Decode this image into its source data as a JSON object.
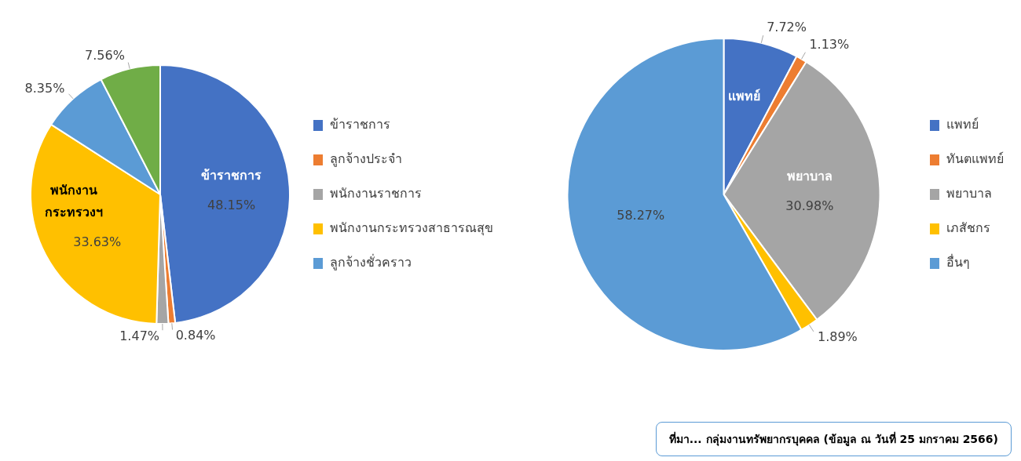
{
  "chart_data": [
    {
      "type": "pie",
      "categories": [
        "ข้าราชการ",
        "ลูกจ้างประจำ",
        "พนักงานราชการ",
        "พนักงานกระทรวงสาธารณสุข",
        "ลูกจ้างชั่วคราว",
        null
      ],
      "values": [
        48.15,
        0.84,
        1.47,
        33.63,
        8.35,
        7.56
      ],
      "colors": [
        "#4472c4",
        "#ed7d31",
        "#a5a5a5",
        "#ffc000",
        "#5b9bd5",
        "#70ad47"
      ],
      "value_labels": [
        "48.15%",
        "0.84%",
        "1.47%",
        "33.63%",
        "8.35%",
        "7.56%"
      ],
      "legend": "right",
      "annotations": [
        {
          "text": "ข้าราชการ",
          "x": "ข้าราชการ"
        },
        {
          "text": "พนักงาน กระทรวงฯ",
          "x": "พนักงานกระทรวงสาธารณสุข"
        }
      ]
    },
    {
      "type": "pie",
      "categories": [
        "แพทย์",
        "ทันตแพทย์",
        "พยาบาล",
        "เภสัชกร",
        "อื่นๆ"
      ],
      "values": [
        7.72,
        1.13,
        30.98,
        1.89,
        58.27
      ],
      "colors": [
        "#4472c4",
        "#ed7d31",
        "#a5a5a5",
        "#ffc000",
        "#5b9bd5"
      ],
      "value_labels": [
        "7.72%",
        "1.13%",
        "30.98%",
        "1.89%",
        "58.27%"
      ],
      "legend": "right",
      "annotations": [
        {
          "text": "แพทย์",
          "x": "แพทย์"
        },
        {
          "text": "พยาบาล",
          "x": "พยาบาล"
        },
        "ที่มา... กลุ่มงานทรัพยากรบุคคล   (ข้อมูล ณ วันที่  25 มกราคม 2566)"
      ]
    }
  ]
}
